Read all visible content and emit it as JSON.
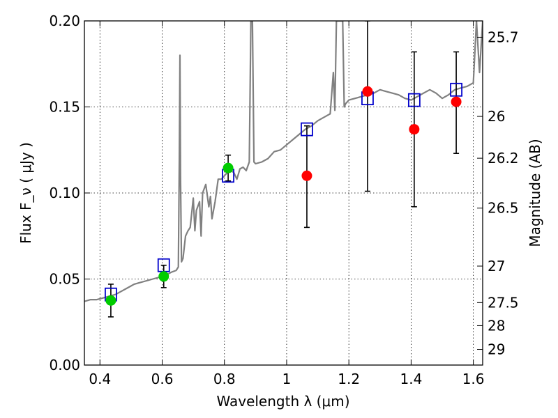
{
  "chart_data": {
    "type": "scatter",
    "xlabel": "Wavelength  λ (μm)",
    "ylabel": "Flux  F_ν  ( μJy )",
    "y2label": "Magnitude (AB)",
    "xlim": [
      0.35,
      1.63
    ],
    "ylim": [
      0.0,
      0.2
    ],
    "grid": true,
    "x_ticks": [
      0.4,
      0.6,
      0.8,
      1.0,
      1.2,
      1.4,
      1.6
    ],
    "x_tick_labels": [
      "0.4",
      "0.6",
      "0.8",
      "1",
      "1.2",
      "1.4",
      "1.6"
    ],
    "y_ticks": [
      0.0,
      0.05,
      0.1,
      0.15,
      0.2
    ],
    "y_tick_labels": [
      "0.00",
      "0.05",
      "0.10",
      "0.15",
      "0.20"
    ],
    "y2_ticks": [
      {
        "label": "25.7",
        "flux": 0.1905
      },
      {
        "label": "26",
        "flux": 0.1445
      },
      {
        "label": "26.2",
        "flux": 0.1202
      },
      {
        "label": "26.5",
        "flux": 0.0912
      },
      {
        "label": "27",
        "flux": 0.0575
      },
      {
        "label": "27.5",
        "flux": 0.0363
      },
      {
        "label": "28",
        "flux": 0.0229
      },
      {
        "label": "29",
        "flux": 0.0091
      }
    ],
    "series": [
      {
        "kind": "model",
        "color": "#808080",
        "points": [
          [
            0.35,
            0.037
          ],
          [
            0.37,
            0.038
          ],
          [
            0.39,
            0.038
          ],
          [
            0.41,
            0.039
          ],
          [
            0.43,
            0.04
          ],
          [
            0.45,
            0.041
          ],
          [
            0.47,
            0.043
          ],
          [
            0.49,
            0.045
          ],
          [
            0.51,
            0.047
          ],
          [
            0.53,
            0.048
          ],
          [
            0.55,
            0.049
          ],
          [
            0.57,
            0.05
          ],
          [
            0.59,
            0.051
          ],
          [
            0.61,
            0.052
          ],
          [
            0.63,
            0.054
          ],
          [
            0.645,
            0.055
          ],
          [
            0.652,
            0.057
          ],
          [
            0.655,
            0.12
          ],
          [
            0.657,
            0.18
          ],
          [
            0.659,
            0.11
          ],
          [
            0.662,
            0.06
          ],
          [
            0.667,
            0.062
          ],
          [
            0.675,
            0.075
          ],
          [
            0.683,
            0.078
          ],
          [
            0.69,
            0.08
          ],
          [
            0.7,
            0.097
          ],
          [
            0.705,
            0.078
          ],
          [
            0.71,
            0.09
          ],
          [
            0.72,
            0.095
          ],
          [
            0.725,
            0.075
          ],
          [
            0.73,
            0.1
          ],
          [
            0.74,
            0.105
          ],
          [
            0.75,
            0.092
          ],
          [
            0.755,
            0.098
          ],
          [
            0.76,
            0.085
          ],
          [
            0.77,
            0.095
          ],
          [
            0.78,
            0.108
          ],
          [
            0.79,
            0.108
          ],
          [
            0.8,
            0.11
          ],
          [
            0.81,
            0.112
          ],
          [
            0.82,
            0.113
          ],
          [
            0.83,
            0.112
          ],
          [
            0.84,
            0.108
          ],
          [
            0.85,
            0.114
          ],
          [
            0.86,
            0.115
          ],
          [
            0.87,
            0.113
          ],
          [
            0.88,
            0.118
          ],
          [
            0.885,
            0.2
          ],
          [
            0.89,
            0.2
          ],
          [
            0.895,
            0.118
          ],
          [
            0.9,
            0.117
          ],
          [
            0.92,
            0.118
          ],
          [
            0.94,
            0.12
          ],
          [
            0.96,
            0.124
          ],
          [
            0.98,
            0.125
          ],
          [
            1.0,
            0.128
          ],
          [
            1.02,
            0.131
          ],
          [
            1.04,
            0.134
          ],
          [
            1.06,
            0.137
          ],
          [
            1.08,
            0.139
          ],
          [
            1.1,
            0.142
          ],
          [
            1.12,
            0.144
          ],
          [
            1.14,
            0.146
          ],
          [
            1.15,
            0.17
          ],
          [
            1.155,
            0.148
          ],
          [
            1.16,
            0.2
          ],
          [
            1.17,
            0.2
          ],
          [
            1.18,
            0.2
          ],
          [
            1.185,
            0.15
          ],
          [
            1.19,
            0.152
          ],
          [
            1.2,
            0.154
          ],
          [
            1.22,
            0.155
          ],
          [
            1.24,
            0.156
          ],
          [
            1.26,
            0.157
          ],
          [
            1.28,
            0.158
          ],
          [
            1.3,
            0.16
          ],
          [
            1.32,
            0.159
          ],
          [
            1.34,
            0.158
          ],
          [
            1.36,
            0.157
          ],
          [
            1.38,
            0.155
          ],
          [
            1.4,
            0.154
          ],
          [
            1.42,
            0.156
          ],
          [
            1.44,
            0.158
          ],
          [
            1.46,
            0.16
          ],
          [
            1.48,
            0.158
          ],
          [
            1.5,
            0.155
          ],
          [
            1.52,
            0.157
          ],
          [
            1.54,
            0.16
          ],
          [
            1.56,
            0.161
          ],
          [
            1.58,
            0.162
          ],
          [
            1.6,
            0.164
          ],
          [
            1.61,
            0.2
          ],
          [
            1.62,
            0.17
          ],
          [
            1.63,
            0.2
          ]
        ]
      },
      {
        "kind": "green-points",
        "color": "#00cc00",
        "points": [
          [
            0.435,
            0.0375
          ],
          [
            0.605,
            0.0515
          ],
          [
            0.812,
            0.1145
          ]
        ],
        "errors": [
          [
            0.028,
            0.047
          ],
          [
            0.045,
            0.058
          ],
          [
            0.107,
            0.122
          ]
        ]
      },
      {
        "kind": "red-points",
        "color": "#ff0000",
        "points": [
          [
            1.065,
            0.11
          ],
          [
            1.26,
            0.159
          ],
          [
            1.41,
            0.137
          ],
          [
            1.545,
            0.153
          ]
        ],
        "errors": [
          [
            0.08,
            0.139
          ],
          [
            0.101,
            0.2
          ],
          [
            0.092,
            0.182
          ],
          [
            0.123,
            0.182
          ]
        ]
      },
      {
        "kind": "model-boxes",
        "color": "#0000cc",
        "points": [
          [
            0.435,
            0.041
          ],
          [
            0.605,
            0.058
          ],
          [
            0.812,
            0.11
          ],
          [
            1.065,
            0.137
          ],
          [
            1.26,
            0.155
          ],
          [
            1.41,
            0.154
          ],
          [
            1.545,
            0.16
          ]
        ]
      }
    ]
  }
}
